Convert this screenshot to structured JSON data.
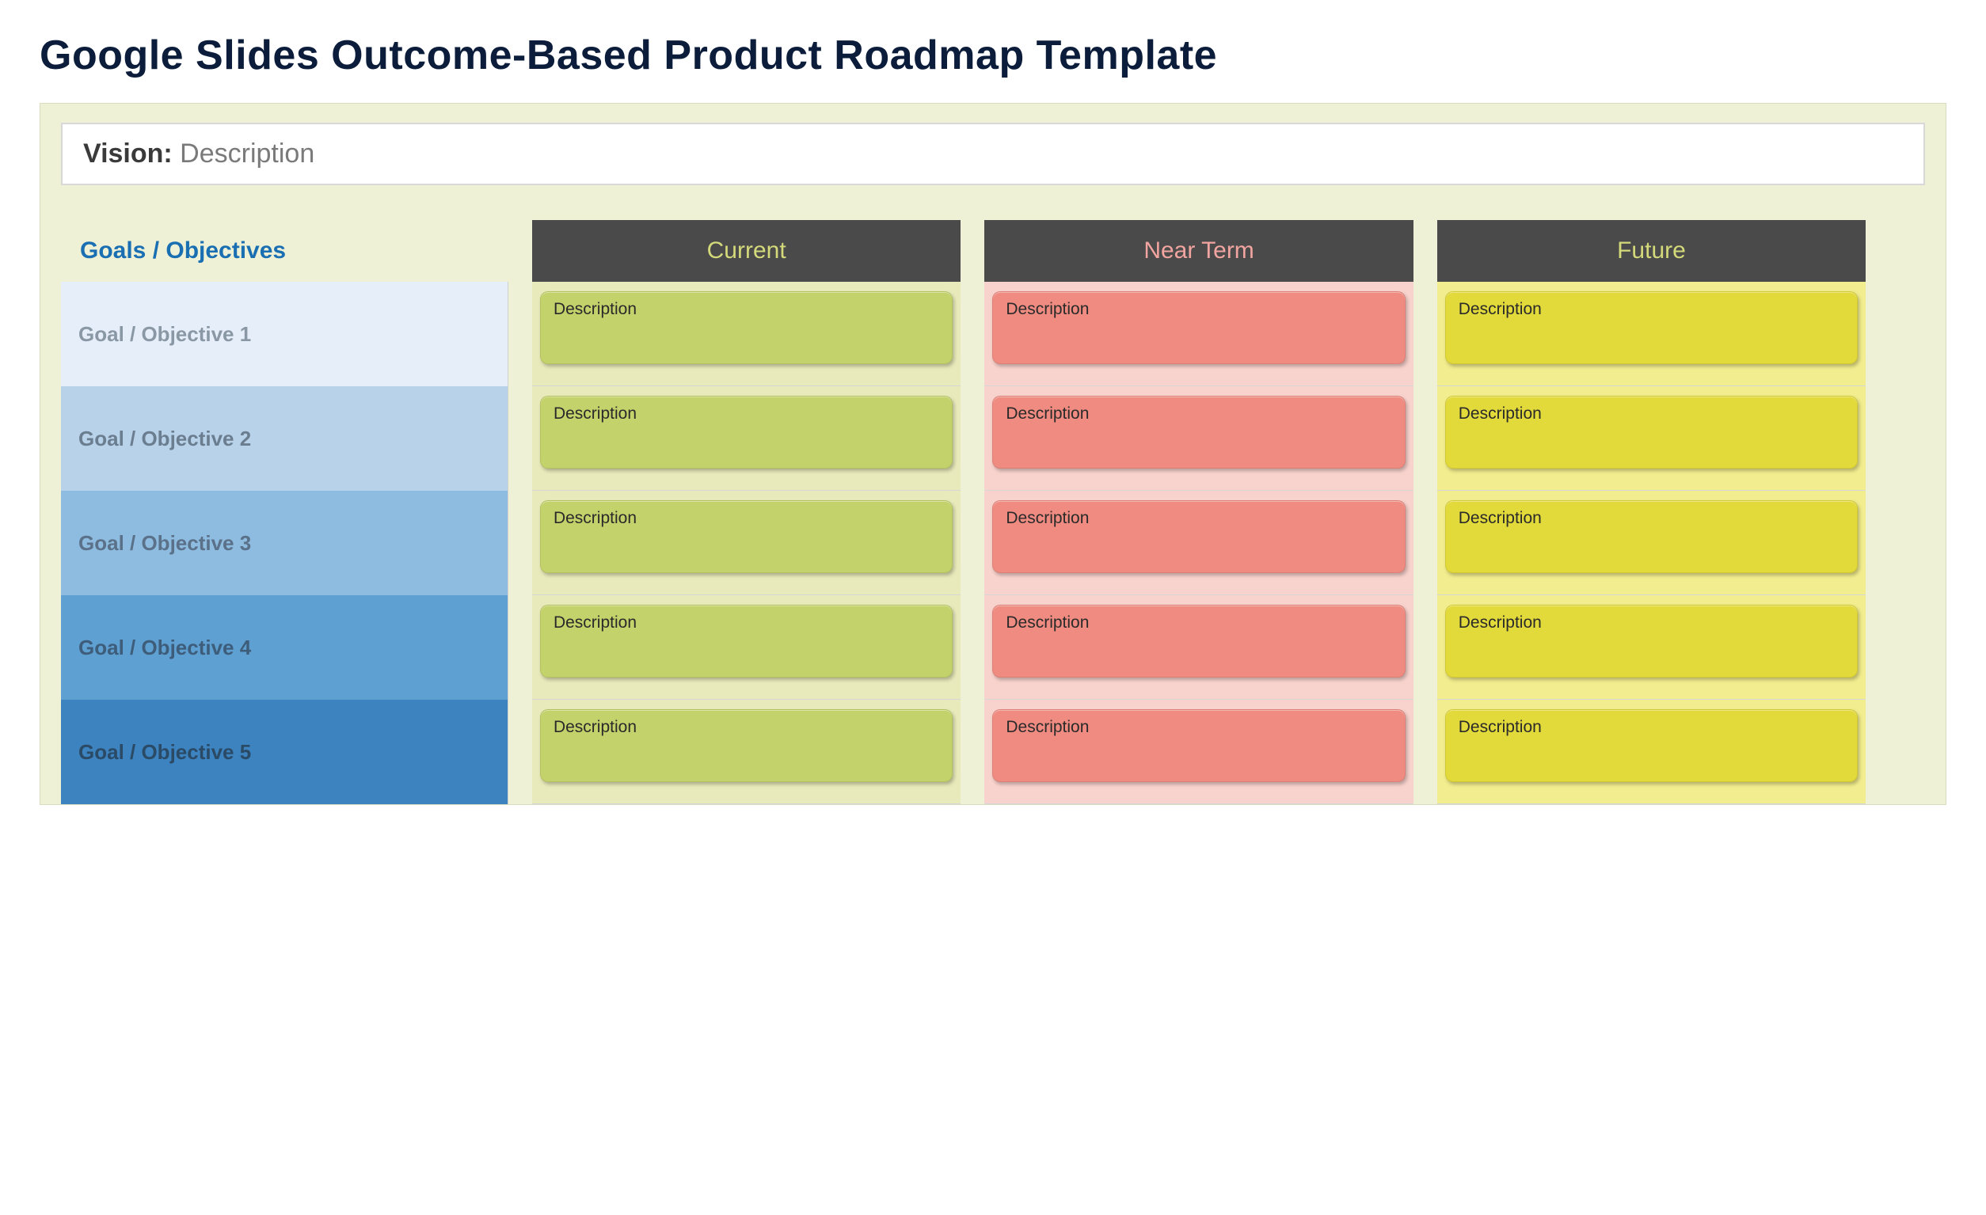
{
  "title": "Google Slides Outcome-Based Product Roadmap Template",
  "vision": {
    "label": "Vision:",
    "desc": " Description"
  },
  "headers": {
    "goals": "Goals / Objectives",
    "current": "Current",
    "near": "Near Term",
    "future": "Future"
  },
  "colors": {
    "canvas_bg": "#eef1d6",
    "time_header_bg": "#4a4a4a",
    "time_header_text": "#d4d97a",
    "time_header_near_text": "#f2a5a0",
    "current_col_bg": "#e8eabb",
    "near_col_bg": "#f8d2cd",
    "future_col_bg": "#f2ed8e",
    "current_card": "#c3d26a",
    "near_card": "#ef8b80",
    "future_card": "#e2d93a"
  },
  "goals": [
    {
      "label": "Goal / Objective 1",
      "bg": "#e6eef9",
      "text": "#8a98a6"
    },
    {
      "label": "Goal / Objective  2",
      "bg": "#b8d2ea",
      "text": "#6b7e90"
    },
    {
      "label": "Goal / Objective  3",
      "bg": "#8ebce0",
      "text": "#5a7189"
    },
    {
      "label": "Goal / Objective  4",
      "bg": "#5fa0d2",
      "text": "#3d5d7a"
    },
    {
      "label": "Goal / Objective  5",
      "bg": "#3c83c0",
      "text": "#2a4a66"
    }
  ],
  "cells": {
    "current": [
      "Description",
      "Description",
      "Description",
      "Description",
      "Description"
    ],
    "near": [
      "Description",
      "Description",
      "Description",
      "Description",
      "Description"
    ],
    "future": [
      "Description",
      "Description",
      "Description",
      "Description",
      "Description"
    ]
  }
}
